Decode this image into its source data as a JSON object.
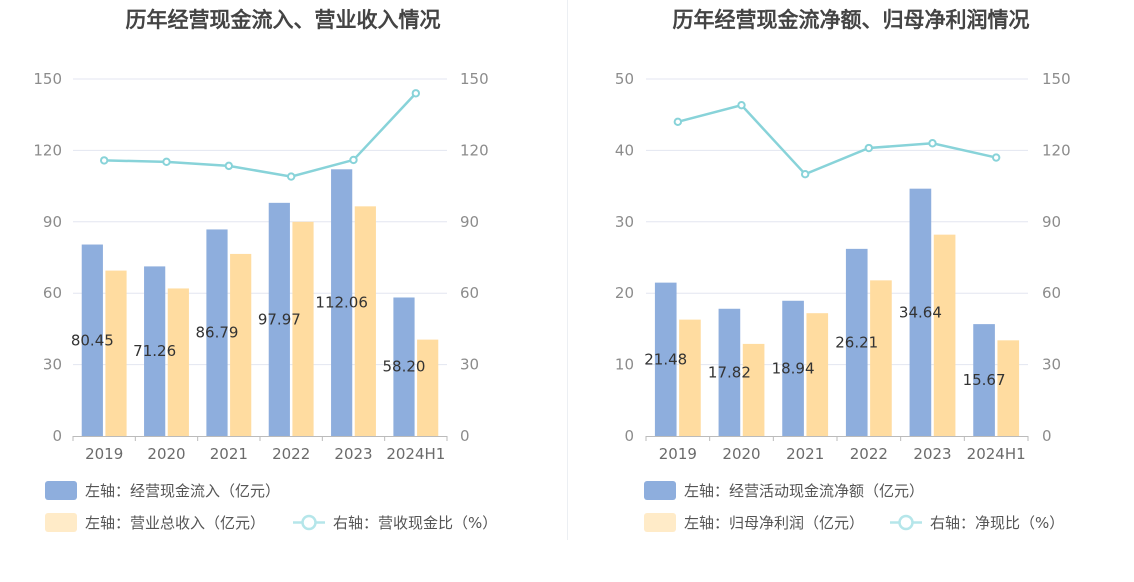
{
  "colors": {
    "bar_left": "#8eaedd",
    "bar_right": "#ffdca0",
    "line": "#88d3d9",
    "grid": "#e3e6f0",
    "axis": "#bbbbbb",
    "legend_bar_right": "#ffebc8",
    "legend_line": "#b5e6ea"
  },
  "chart_data": [
    {
      "type": "bar",
      "title": "历年经营现金流入、营业收入情况",
      "categories": [
        "2019",
        "2020",
        "2021",
        "2022",
        "2023",
        "2024H1"
      ],
      "ylim_left": [
        0,
        150
      ],
      "ylim_right": [
        0,
        150
      ],
      "yticks_left": [
        0,
        30,
        60,
        90,
        120,
        150
      ],
      "yticks_right": [
        0,
        30,
        60,
        90,
        120,
        150
      ],
      "grid": true,
      "legend_position": "bottom-left",
      "series": [
        {
          "name": "左轴：经营现金流入（亿元）",
          "type": "bar",
          "axis": "left",
          "values": [
            80.45,
            71.26,
            86.79,
            97.97,
            112.06,
            58.2
          ],
          "labels": [
            "80.45",
            "71.26",
            "86.79",
            "97.97",
            "112.06",
            "58.20"
          ]
        },
        {
          "name": "左轴：营业总收入（亿元）",
          "type": "bar",
          "axis": "left",
          "values": [
            69.5,
            62,
            76.5,
            90,
            96.5,
            40.5
          ]
        },
        {
          "name": "右轴：营收现金比（%）",
          "type": "line",
          "axis": "right",
          "values": [
            115.8,
            115.2,
            113.5,
            109,
            116,
            144
          ]
        }
      ]
    },
    {
      "type": "bar",
      "title": "历年经营现金流净额、归母净利润情况",
      "categories": [
        "2019",
        "2020",
        "2021",
        "2022",
        "2023",
        "2024H1"
      ],
      "ylim_left": [
        0,
        50
      ],
      "ylim_right": [
        0,
        150
      ],
      "yticks_left": [
        0,
        10,
        20,
        30,
        40,
        50
      ],
      "yticks_right": [
        0,
        30,
        60,
        90,
        120,
        150
      ],
      "grid": true,
      "legend_position": "bottom-left",
      "series": [
        {
          "name": "左轴：经营活动现金流净额（亿元）",
          "type": "bar",
          "axis": "left",
          "values": [
            21.48,
            17.82,
            18.94,
            26.21,
            34.64,
            15.67
          ],
          "labels": [
            "21.48",
            "17.82",
            "18.94",
            "26.21",
            "34.64",
            "15.67"
          ]
        },
        {
          "name": "左轴：归母净利润（亿元）",
          "type": "bar",
          "axis": "left",
          "values": [
            16.3,
            12.9,
            17.2,
            21.8,
            28.2,
            13.4
          ]
        },
        {
          "name": "右轴：净现比（%）",
          "type": "line",
          "axis": "right",
          "values": [
            132,
            139,
            110,
            121,
            123,
            117
          ]
        }
      ]
    }
  ]
}
